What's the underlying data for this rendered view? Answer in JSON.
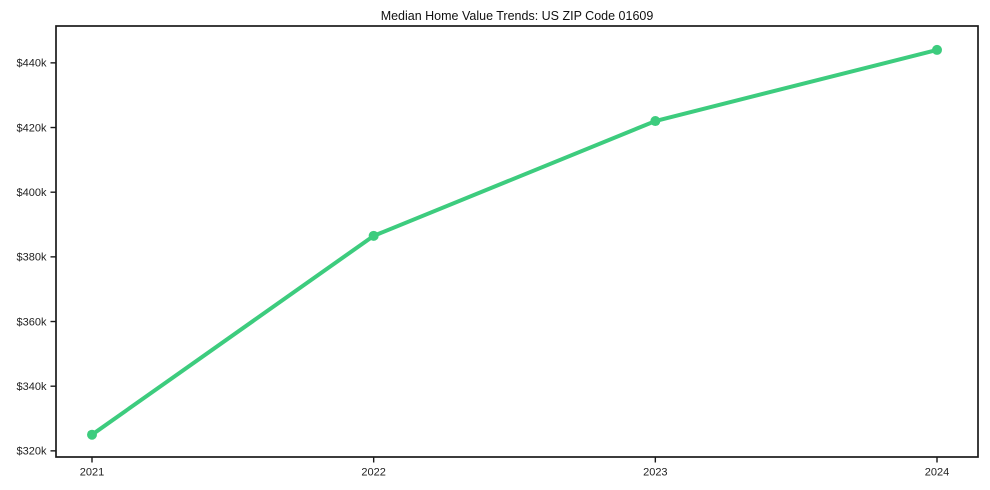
{
  "chart_data": {
    "type": "line",
    "title": "Median Home Value Trends: US ZIP Code 01609",
    "xlabel": "",
    "ylabel": "",
    "categories": [
      "2021",
      "2022",
      "2023",
      "2024"
    ],
    "series": [
      {
        "name": "Median Home Value",
        "values": [
          325000,
          386500,
          422000,
          444000
        ],
        "color": "#3dcc7e",
        "marker": "circle",
        "line_width": 4,
        "marker_radius": 5
      }
    ],
    "yticks": [
      320000,
      340000,
      360000,
      380000,
      400000,
      420000,
      440000
    ],
    "ytick_labels": [
      "$320k",
      "$340k",
      "$360k",
      "$380k",
      "$400k",
      "$420k",
      "$440k"
    ],
    "ylim": [
      318100,
      451400
    ],
    "grid": false,
    "legend_position": "none",
    "axis_color": "#1a1a1a",
    "background_color": "#ffffff"
  }
}
